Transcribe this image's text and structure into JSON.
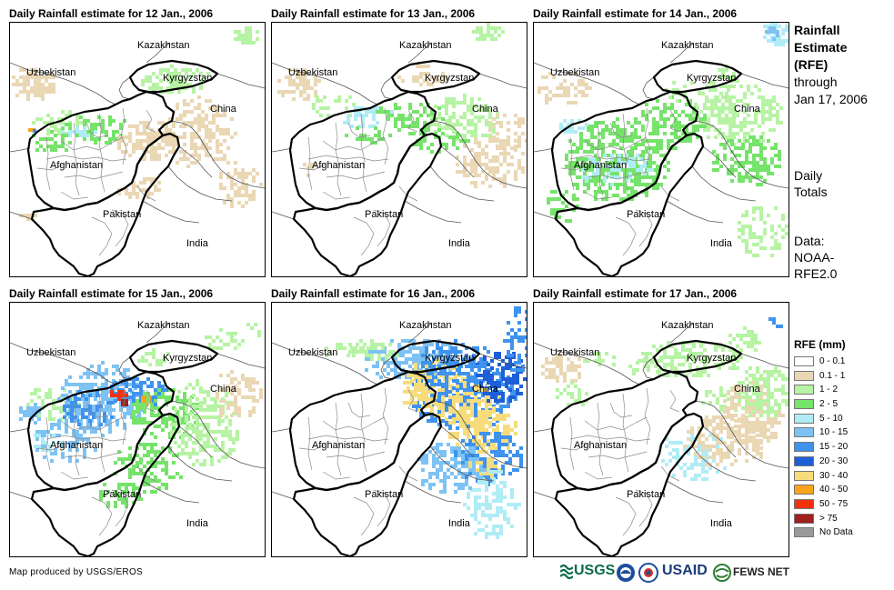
{
  "panels": [
    {
      "title": "Daily Rainfall estimate for 12 Jan., 2006",
      "day": 12
    },
    {
      "title": "Daily Rainfall estimate for 13 Jan., 2006",
      "day": 13
    },
    {
      "title": "Daily Rainfall estimate for 14 Jan., 2006",
      "day": 14
    },
    {
      "title": "Daily Rainfall estimate for 15 Jan., 2006",
      "day": 15
    },
    {
      "title": "Daily Rainfall estimate for 16 Jan., 2006",
      "day": 16
    },
    {
      "title": "Daily Rainfall estimate for 17 Jan., 2006",
      "day": 17
    }
  ],
  "map_labels": {
    "kazakhstan": "Kazakhstan",
    "uzbekistan": "Uzbekistan",
    "kyrgyzstan": "Kyrgyzstan",
    "china": "China",
    "afghanistan": "Afghanistan",
    "pakistan": "Pakistan",
    "india": "India"
  },
  "side": {
    "title_line1": "Rainfall",
    "title_line2": "Estimate",
    "title_line3": "(RFE)",
    "through": "through",
    "date": "Jan 17, 2006",
    "totals_line1": "Daily",
    "totals_line2": "Totals",
    "data_line1": "Data:",
    "data_line2": "NOAA-",
    "data_line3": "RFE2.0"
  },
  "legend": {
    "title": "RFE (mm)",
    "items": [
      {
        "label": "0 - 0.1",
        "color": "#ffffff"
      },
      {
        "label": "0.1 - 1",
        "color": "#ead7b4"
      },
      {
        "label": "1 - 2",
        "color": "#b7f3a4"
      },
      {
        "label": "2 - 5",
        "color": "#76e36b"
      },
      {
        "label": "5 - 10",
        "color": "#b0ecf6"
      },
      {
        "label": "10 - 15",
        "color": "#7dc2f4"
      },
      {
        "label": "15 - 20",
        "color": "#3f93ee"
      },
      {
        "label": "20 - 30",
        "color": "#1c5fd8"
      },
      {
        "label": "30 - 40",
        "color": "#f6dc7b"
      },
      {
        "label": "40 - 50",
        "color": "#fba319"
      },
      {
        "label": "50 - 75",
        "color": "#f0320f"
      },
      {
        "label": "> 75",
        "color": "#a0201f"
      },
      {
        "label": "No Data",
        "color": "#9a9a9a"
      }
    ]
  },
  "footer": {
    "credit": "Map produced by USGS/EROS",
    "logo_usgs": "USGS",
    "logo_usaid": "USAID",
    "logo_fews": "FEWS NET"
  }
}
